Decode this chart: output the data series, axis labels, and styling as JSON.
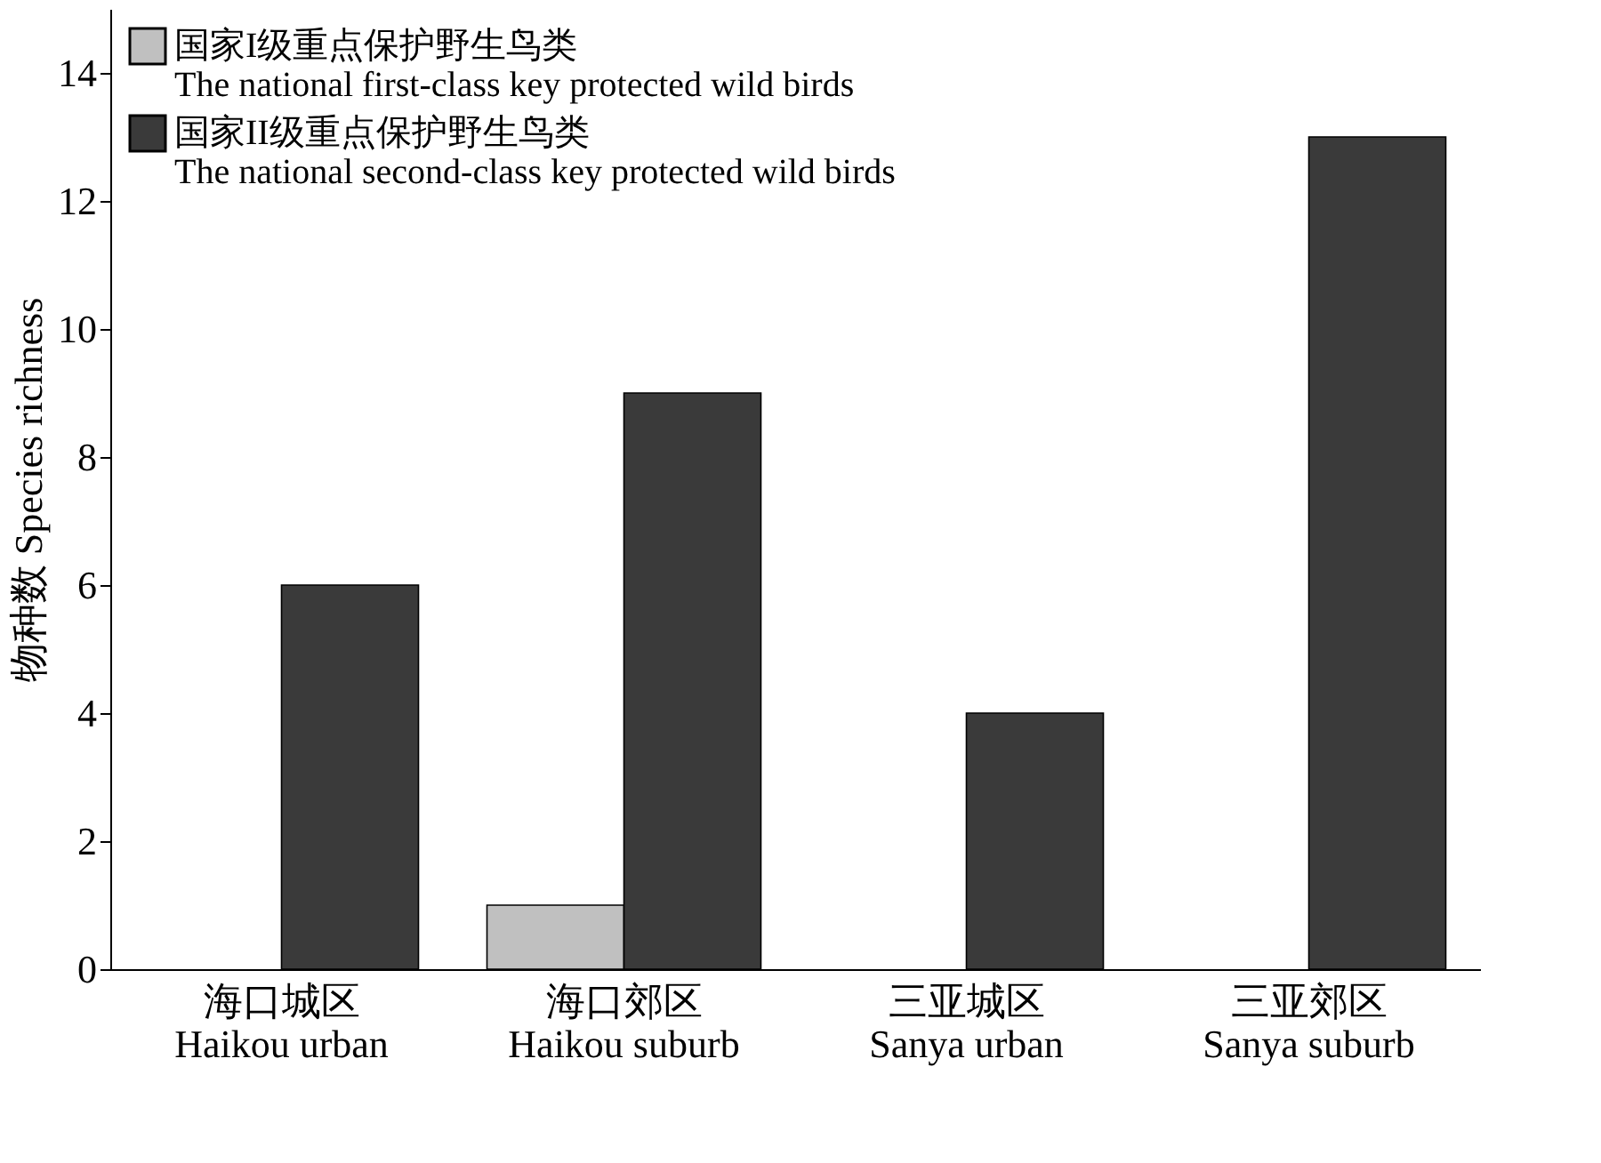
{
  "chart_data": {
    "type": "bar",
    "ylabel": "物种数 Species richness",
    "categories": [
      "海口城区\nHaikou urban",
      "海口郊区\nHaikou suburb",
      "三亚城区\nSanya urban",
      "三亚郊区\nSanya suburb"
    ],
    "series": [
      {
        "name": "国家I级重点保护野生鸟类\nThe national first-class key protected wild birds",
        "color": "#c0c0c0",
        "values": [
          0,
          1,
          0,
          0
        ]
      },
      {
        "name": "国家II级重点保护野生鸟类\nThe national second-class key protected wild birds",
        "color": "#3a3a3a",
        "values": [
          6,
          9,
          4,
          13
        ]
      }
    ],
    "ylim": [
      0,
      15
    ],
    "yticks": [
      0,
      2,
      4,
      6,
      8,
      10,
      12,
      14
    ],
    "grid": false,
    "legend": "top left"
  }
}
